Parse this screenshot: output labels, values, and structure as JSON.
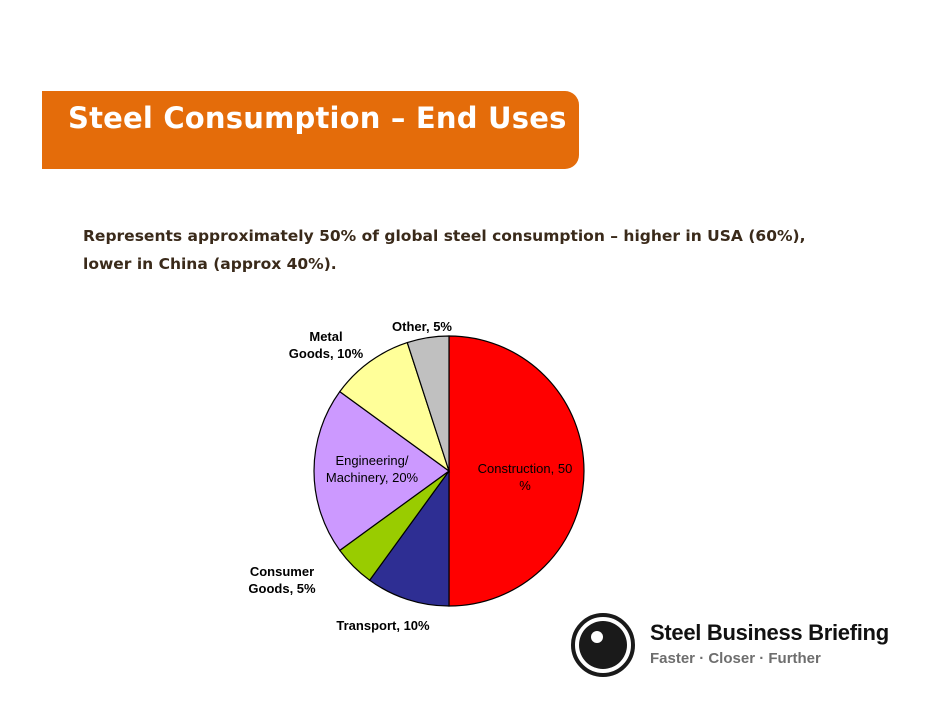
{
  "slide": {
    "title": "Steel Consumption – End Uses",
    "subtitle_line1": "Represents approximately 50% of global steel consumption – higher in USA (60%),",
    "subtitle_line2": "lower in China (approx 40%)."
  },
  "chart_data": {
    "type": "pie",
    "title": "",
    "slices": [
      {
        "name": "Construction",
        "value": 50,
        "color": "#ff0000",
        "label_line1": "Construction, 50",
        "label_line2": "%"
      },
      {
        "name": "Transport",
        "value": 10,
        "color": "#2e2e93",
        "label_line1": "Transport, 10%",
        "label_line2": ""
      },
      {
        "name": "Consumer Goods",
        "value": 5,
        "color": "#99cc00",
        "label_line1": "Consumer",
        "label_line2": "Goods, 5%"
      },
      {
        "name": "Engineering/Machinery",
        "value": 20,
        "color": "#cc99ff",
        "label_line1": "Engineering/",
        "label_line2": "Machinery, 20%"
      },
      {
        "name": "Metal Goods",
        "value": 10,
        "color": "#ffff99",
        "label_line1": "Metal",
        "label_line2": "Goods, 10%"
      },
      {
        "name": "Other",
        "value": 5,
        "color": "#c0c0c0",
        "label_line1": "Other, 5%",
        "label_line2": ""
      }
    ]
  },
  "logo": {
    "name": "Steel Business Briefing",
    "tagline": "Faster · Closer · Further"
  }
}
